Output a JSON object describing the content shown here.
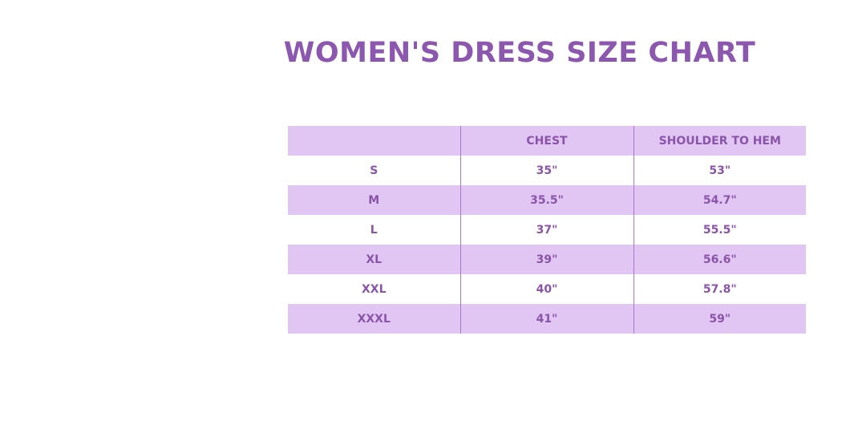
{
  "title": "WOMEN'S DRESS SIZE CHART",
  "colors": {
    "accent_text": "#8a55a8",
    "band": "#e1c6f4",
    "divider": "#a877cf"
  },
  "table": {
    "headers": [
      "",
      "CHEST",
      "SHOULDER TO HEM"
    ],
    "rows": [
      [
        "S",
        "35\"",
        "53\""
      ],
      [
        "M",
        "35.5\"",
        "54.7\""
      ],
      [
        "L",
        "37\"",
        "55.5\""
      ],
      [
        "XL",
        "39\"",
        "56.6\""
      ],
      [
        "XXL",
        "40\"",
        "57.8\""
      ],
      [
        "XXXL",
        "41\"",
        "59\""
      ]
    ]
  }
}
